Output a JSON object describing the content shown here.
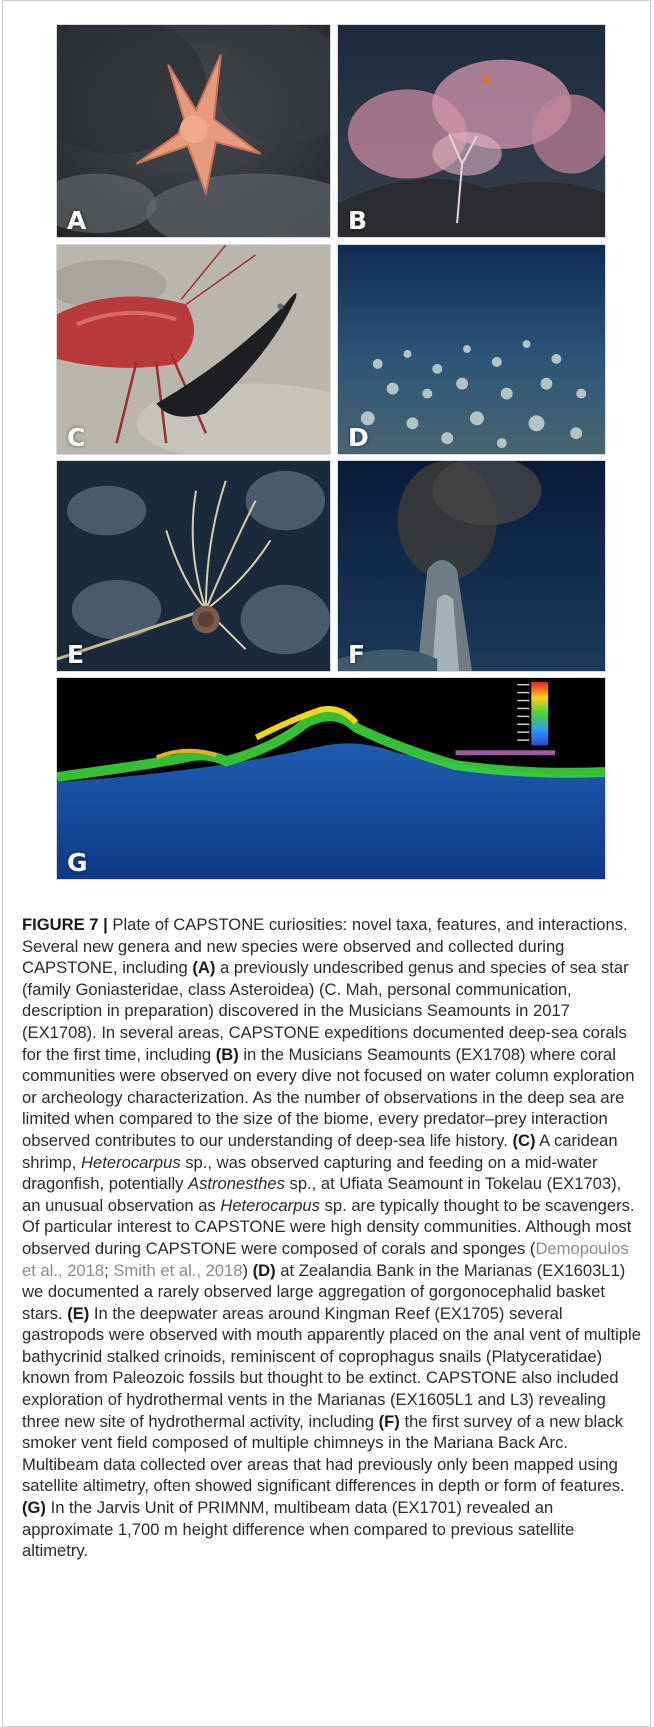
{
  "figure": {
    "panels": [
      {
        "id": "A",
        "label": "A"
      },
      {
        "id": "B",
        "label": "B"
      },
      {
        "id": "C",
        "label": "C"
      },
      {
        "id": "D",
        "label": "D"
      },
      {
        "id": "E",
        "label": "E"
      },
      {
        "id": "F",
        "label": "F"
      },
      {
        "id": "G",
        "label": "G"
      }
    ],
    "colorbar_colors": [
      "#e8202a",
      "#f6d11b",
      "#49d13a",
      "#2a9df0",
      "#2b4bd8"
    ]
  },
  "caption": {
    "figure_label": "FIGURE 7 |",
    "s01": " Plate of CAPSTONE curiosities: novel taxa, features, and interactions. Several new genera and new species were observed and collected during CAPSTONE, including ",
    "m_a": "(A)",
    "s02": " a previously undescribed genus and species of sea star (family Goniasteridae, class Asteroidea) (C. Mah, personal communication, description in preparation) discovered in the Musicians Seamounts in 2017 (EX1708). In several areas, CAPSTONE expeditions documented deep-sea corals for the first time, including ",
    "m_b": "(B)",
    "s03": " in the Musicians Seamounts (EX1708) where coral communities were observed on every dive not focused on water column exploration or archeology characterization. As the number of observations in the deep sea are limited when compared to the size of the biome, every predator–prey interaction observed contributes to our understanding of deep-sea life history. ",
    "m_c": "(C)",
    "s04": " A caridean shrimp, ",
    "i1": "Heterocarpus",
    "s05": " sp., was observed capturing and feeding on a mid-water dragonfish, potentially ",
    "i2": "Astronesthes",
    "s06": " sp., at Ufiata Seamount in Tokelau (EX1703), an unusual observation as ",
    "i3": "Heterocarpus",
    "s07": " sp. are typically thought to be scavengers. Of particular interest to CAPSTONE were high density communities. Although most observed during CAPSTONE were composed of corals and sponges (",
    "ref1": "Demopoulos et al., 2018",
    "s08": "; ",
    "ref2": "Smith et al., 2018",
    "s09": ") ",
    "m_d": "(D)",
    "s10": " at Zealandia Bank in the Marianas (EX1603L1) we documented a rarely observed large aggregation of gorgonocephalid basket stars. ",
    "m_e": "(E)",
    "s11": " In the deepwater areas around Kingman Reef (EX1705) several gastropods were observed with mouth apparently placed on the anal vent of multiple bathycrinid stalked crinoids, reminiscent of coprophagus snails (Platyceratidae) known from Paleozoic fossils but thought to be extinct. CAPSTONE also included exploration of hydrothermal vents in the Marianas (EX1605L1 and L3) revealing three new site of hydrothermal activity, including ",
    "m_f": "(F)",
    "s12": " the first survey of a new black smoker vent field composed of multiple chimneys in the Mariana Back Arc. Multibeam data collected over areas that had previously only been mapped using satellite altimetry, often showed significant differences in depth or form of features. ",
    "m_g": "(G)",
    "s13": " In the Jarvis Unit of PRIMNM, multibeam data (EX1701) revealed an approximate 1,700 m height difference when compared to previous satellite altimetry."
  }
}
